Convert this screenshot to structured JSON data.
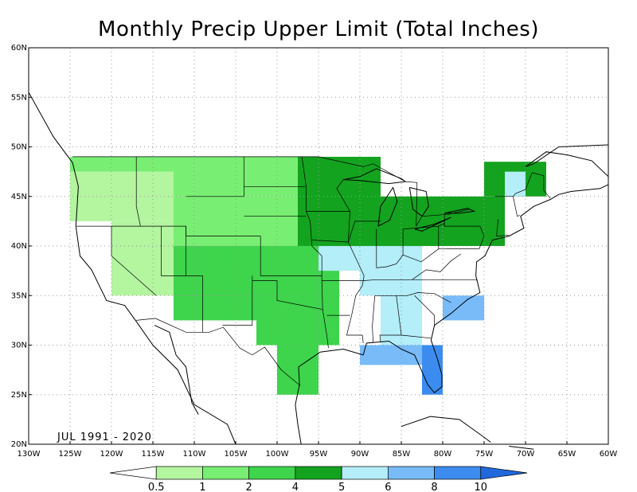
{
  "title": "Monthly Precip Upper Limit (Total Inches)",
  "period": "JUL 1991 - 2020",
  "lat_labels": [
    "20N",
    "25N",
    "30N",
    "35N",
    "40N",
    "45N",
    "50N",
    "55N",
    "60N"
  ],
  "lon_labels": [
    "130W",
    "125W",
    "120W",
    "115W",
    "110W",
    "105W",
    "100W",
    "95W",
    "90W",
    "85W",
    "80W",
    "75W",
    "70W",
    "65W",
    "60W"
  ],
  "map_extent": {
    "lon": [
      -130,
      -60
    ],
    "lat": [
      20,
      60
    ]
  },
  "colorbar": {
    "labels": [
      "0.5",
      "1",
      "2",
      "4",
      "5",
      "6",
      "8",
      "10"
    ],
    "colors": [
      "#ffffff",
      "#b4f5a0",
      "#78ee72",
      "#3ed44c",
      "#13a31f",
      "#b4eef8",
      "#78bbf8",
      "#3c8cf0",
      "#2068dc"
    ]
  },
  "grid": "on",
  "chart_data": {
    "type": "heatmap",
    "title": "Monthly Precip Upper Limit (Total Inches)",
    "units": "inches",
    "cell_size_deg": 2.5,
    "regions": [
      {
        "lon": [
          -125,
          -112.5
        ],
        "lat": [
          47.5,
          49
        ],
        "class": "1-2"
      },
      {
        "lon": [
          -125,
          -120
        ],
        "lat": [
          42.5,
          47.5
        ],
        "class": "0.5-1"
      },
      {
        "lon": [
          -120,
          -112.5
        ],
        "lat": [
          42.5,
          47.5
        ],
        "class": "0.5-1"
      },
      {
        "lon": [
          -112.5,
          -97.5
        ],
        "lat": [
          45,
          49
        ],
        "class": "1-2"
      },
      {
        "lon": [
          -112.5,
          -97.5
        ],
        "lat": [
          40,
          45
        ],
        "class": "1-2"
      },
      {
        "lon": [
          -120,
          -112.5
        ],
        "lat": [
          35,
          42.5
        ],
        "class": "0.5-1"
      },
      {
        "lon": [
          -112.5,
          -102.5
        ],
        "lat": [
          32.5,
          40
        ],
        "class": "2-4"
      },
      {
        "lon": [
          -102.5,
          -92.5
        ],
        "lat": [
          30,
          40
        ],
        "class": "2-4"
      },
      {
        "lon": [
          -100,
          -95
        ],
        "lat": [
          25,
          30
        ],
        "class": "2-4"
      },
      {
        "lon": [
          -97.5,
          -87.5
        ],
        "lat": [
          40,
          49
        ],
        "class": "4-5"
      },
      {
        "lon": [
          -95,
          -90
        ],
        "lat": [
          37.5,
          40
        ],
        "class": "5-6"
      },
      {
        "lon": [
          -90,
          -82.5
        ],
        "lat": [
          35,
          40
        ],
        "class": "5-6"
      },
      {
        "lon": [
          -87.5,
          -82.5
        ],
        "lat": [
          30,
          35
        ],
        "class": "5-6"
      },
      {
        "lon": [
          -90,
          -82.5
        ],
        "lat": [
          28,
          30
        ],
        "class": "6-8"
      },
      {
        "lon": [
          -82.5,
          -80
        ],
        "lat": [
          25,
          30
        ],
        "class": "8-10"
      },
      {
        "lon": [
          -80,
          -75
        ],
        "lat": [
          32.5,
          35
        ],
        "class": "6-8"
      },
      {
        "lon": [
          -87.5,
          -72.5
        ],
        "lat": [
          40,
          45
        ],
        "class": "4-5"
      },
      {
        "lon": [
          -75,
          -67.5
        ],
        "lat": [
          45,
          48.5
        ],
        "class": "4-5"
      },
      {
        "lon": [
          -72.5,
          -70
        ],
        "lat": [
          45,
          47.5
        ],
        "class": "5-6"
      }
    ]
  }
}
